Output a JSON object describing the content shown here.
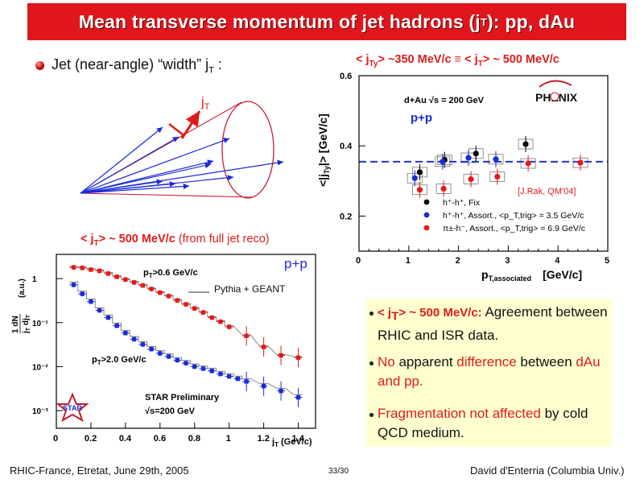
{
  "slide": {
    "title_pre": "Mean transverse momentum of jet hadrons (j",
    "title_sub": "T",
    "title_post": "): pp, dAu",
    "intro_pre": "Jet (near-angle) “width” j",
    "intro_sub": "T",
    "intro_post": " :",
    "cone_label_j": "j",
    "cone_label_sub": "T",
    "phenix_header": {
      "p1": "< j",
      "s1": "Ty",
      "p2": "> ~350 MeV/c ≡ < j",
      "s2": "T",
      "p3": "> ~ 500 MeV/c"
    },
    "star_header": {
      "p1": "< j",
      "s1": "T",
      "p2": "> ~ 500 MeV/c ",
      "p3": "(from full jet reco)"
    },
    "notes": [
      {
        "red1": "< j",
        "red1_sub": "T",
        "red2": "> ~ 500 MeV/c:",
        "text": " Agreement between RHIC and ISR data."
      },
      {
        "red": "No",
        "t1": " apparent ",
        "red2": "difference",
        "t2": " between ",
        "red3": "dAu and pp."
      },
      {
        "red": "Fragmentation not affected",
        "text": " by cold QCD medium."
      }
    ],
    "footer_left": "RHIC-France, Etretat, June 29th, 2005",
    "footer_page": "33/30",
    "footer_right": "David d'Enterria (Columbia Univ.)"
  },
  "colors": {
    "accent_red": "#e01b1b",
    "title_bg": "#e0161c",
    "note_bg": "#ffffd0",
    "blue": "#1a2bd6",
    "dashed": "#2233cc"
  },
  "icons": [
    "bullet-sphere-icon",
    "jet-cone-diagram",
    "phenix-logo-icon",
    "star-logo-icon"
  ],
  "chart_data": [
    {
      "type": "scatter",
      "title": "",
      "xlabel": "p_T,associated [GeV/c]",
      "ylabel": "<|j_Ty|> [GeV/c]",
      "xlim": [
        0,
        5
      ],
      "ylim": [
        0.1,
        0.6
      ],
      "x_ticks": [
        "0",
        "1",
        "2",
        "3",
        "4",
        "5"
      ],
      "y_ticks": [
        "0.2",
        "0.4",
        "0.6"
      ],
      "system_label": "d+Au √s = 200 GeV",
      "pp_label": "p+p",
      "experiment_label": "PHENIX",
      "reference": "[J.Rak, QM'04]",
      "dashed_line_y": 0.355,
      "series": [
        {
          "name": "h⁺-h⁺, Fix",
          "color": "#000000",
          "points": [
            [
              1.22,
              0.325
            ],
            [
              1.72,
              0.36
            ],
            [
              2.35,
              0.378
            ],
            [
              3.35,
              0.405
            ]
          ]
        },
        {
          "name": "h⁺-h⁺, Assort., <p_T,trig> = 3.5 GeV/c",
          "color": "#1a2bd6",
          "points": [
            [
              1.12,
              0.308
            ],
            [
              1.68,
              0.355
            ],
            [
              2.2,
              0.366
            ],
            [
              2.75,
              0.362
            ]
          ]
        },
        {
          "name": "π±-h⁻, Assort., <p_T,trig> = 6.9 GeV/c",
          "color": "#e01b1b",
          "points": [
            [
              1.22,
              0.275
            ],
            [
              1.7,
              0.278
            ],
            [
              2.25,
              0.305
            ],
            [
              2.78,
              0.312
            ],
            [
              3.4,
              0.35
            ],
            [
              4.45,
              0.352
            ]
          ]
        }
      ]
    },
    {
      "type": "scatter",
      "title": "",
      "xlabel": "j_T (GeV/c)",
      "ylabel": "1/j_T dN/dj_T (a.u.)",
      "xlim": [
        0,
        1.5
      ],
      "ylim_log10": [
        -3.4,
        0.55
      ],
      "x_ticks": [
        "0",
        "0.2",
        "0.4",
        "0.6",
        "0.8",
        "1",
        "1.2",
        "1.4"
      ],
      "y_ticks": [
        "10⁻³",
        "10⁻²",
        "10⁻¹",
        "1"
      ],
      "pp_label": "p+p",
      "sim_label": "Pythia + GEANT",
      "preliminary": "STAR Preliminary",
      "energy": "√s=200 GeV",
      "experiment_label": "STAR",
      "series": [
        {
          "name": "p_T>0.6 GeV/c",
          "color": "#e01b1b",
          "x": [
            0.1,
            0.15,
            0.2,
            0.25,
            0.3,
            0.35,
            0.4,
            0.45,
            0.5,
            0.55,
            0.6,
            0.65,
            0.7,
            0.75,
            0.8,
            0.85,
            0.9,
            0.95,
            1.0,
            1.1,
            1.2,
            1.3,
            1.4
          ],
          "y": [
            1.8,
            1.75,
            1.6,
            1.5,
            1.3,
            1.1,
            0.95,
            0.82,
            0.7,
            0.58,
            0.48,
            0.4,
            0.32,
            0.26,
            0.21,
            0.17,
            0.13,
            0.105,
            0.08,
            0.05,
            0.028,
            0.018,
            0.016
          ]
        },
        {
          "name": "p_T>2.0 GeV/c",
          "color": "#1a2bd6",
          "x": [
            0.1,
            0.15,
            0.2,
            0.25,
            0.3,
            0.35,
            0.4,
            0.45,
            0.5,
            0.55,
            0.6,
            0.65,
            0.7,
            0.75,
            0.8,
            0.85,
            0.9,
            0.95,
            1.0,
            1.05,
            1.1,
            1.2,
            1.3,
            1.4
          ],
          "y": [
            0.72,
            0.45,
            0.3,
            0.19,
            0.13,
            0.085,
            0.058,
            0.042,
            0.032,
            0.025,
            0.02,
            0.017,
            0.014,
            0.012,
            0.01,
            0.009,
            0.008,
            0.0068,
            0.006,
            0.0053,
            0.0046,
            0.0036,
            0.0028,
            0.002
          ]
        }
      ]
    }
  ]
}
